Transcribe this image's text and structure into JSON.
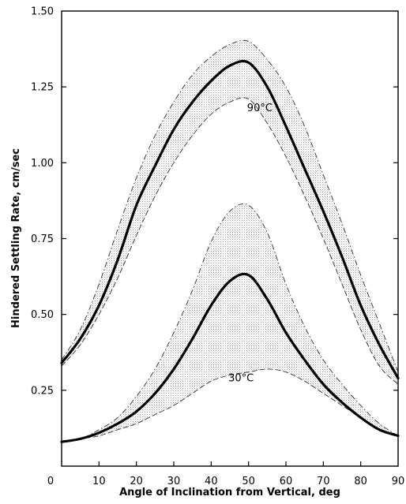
{
  "chart_data": {
    "type": "line",
    "title": "",
    "xlabel": "Angle of Inclination from Vertical, deg",
    "ylabel": "Hindered Settling Rate, cm/sec",
    "xlim": [
      0,
      90
    ],
    "ylim": [
      0,
      1.5
    ],
    "xticks": [
      "0",
      "10",
      "20",
      "30",
      "40",
      "50",
      "60",
      "70",
      "80",
      "90"
    ],
    "yticks": [
      "0.25",
      "0.50",
      "0.75",
      "1.00",
      "1.25",
      "1.50"
    ],
    "grid": false,
    "colors": {
      "line": "#000000",
      "band": "#d8d8d8",
      "dash": "#333333"
    },
    "annotations": [
      {
        "text": "90°C",
        "x": 53,
        "y": 1.17
      },
      {
        "text": "30°C",
        "x": 48,
        "y": 0.28
      }
    ],
    "x": [
      0,
      5,
      10,
      15,
      20,
      25,
      30,
      35,
      40,
      45,
      50,
      55,
      60,
      65,
      70,
      75,
      80,
      85,
      90
    ],
    "groups": [
      {
        "label": "90°C",
        "center": [
          0.34,
          0.42,
          0.53,
          0.68,
          0.86,
          0.99,
          1.11,
          1.2,
          1.27,
          1.32,
          1.33,
          1.25,
          1.12,
          0.98,
          0.84,
          0.69,
          0.53,
          0.4,
          0.29
        ],
        "upper": [
          0.35,
          0.45,
          0.6,
          0.78,
          0.95,
          1.09,
          1.2,
          1.29,
          1.35,
          1.39,
          1.4,
          1.34,
          1.25,
          1.12,
          0.96,
          0.8,
          0.63,
          0.47,
          0.31
        ],
        "lower": [
          0.33,
          0.4,
          0.5,
          0.62,
          0.76,
          0.89,
          1.0,
          1.09,
          1.16,
          1.2,
          1.21,
          1.13,
          1.02,
          0.89,
          0.75,
          0.6,
          0.45,
          0.33,
          0.27
        ]
      },
      {
        "label": "30°C",
        "center": [
          0.08,
          0.09,
          0.11,
          0.14,
          0.18,
          0.24,
          0.32,
          0.42,
          0.53,
          0.61,
          0.63,
          0.55,
          0.44,
          0.35,
          0.27,
          0.21,
          0.16,
          0.12,
          0.1
        ],
        "upper": [
          0.08,
          0.09,
          0.12,
          0.16,
          0.23,
          0.32,
          0.44,
          0.58,
          0.74,
          0.84,
          0.86,
          0.77,
          0.6,
          0.46,
          0.35,
          0.27,
          0.2,
          0.14,
          0.1
        ],
        "lower": [
          0.08,
          0.09,
          0.1,
          0.12,
          0.14,
          0.17,
          0.2,
          0.24,
          0.28,
          0.3,
          0.31,
          0.32,
          0.31,
          0.28,
          0.24,
          0.2,
          0.16,
          0.12,
          0.1
        ]
      }
    ]
  }
}
